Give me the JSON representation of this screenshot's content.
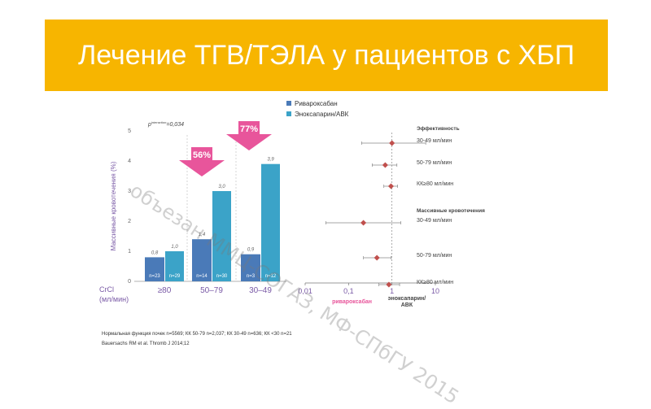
{
  "slide": {
    "title": "Лечение ТГВ/ТЭЛА у пациентов с ХБП",
    "footnote": "Нормальная функция почек n=5569; КК 50-79 n=2,037; КК 30-49 n=636;  КК <30  n=21",
    "reference": "Bauersachs RM et al. Thromb J 2014;12",
    "watermark": "объезан ММЦ-СОГАЗ, МФ-СПбГУ 2015"
  },
  "colors": {
    "title_bg": "#f7b500",
    "rivaroxaban": "#4a7ab8",
    "enoxaparin": "#3ba3c8",
    "arrow": "#e8559b",
    "forest_marker": "#c0504d"
  },
  "chart_data": [
    {
      "type": "bar",
      "ylabel": "Массивные кровотечения (%)",
      "xlabel": "CrCl (мл/мин)",
      "ylim": [
        0,
        5
      ],
      "yticks": [
        "0",
        "1",
        "2",
        "3",
        "4",
        "5"
      ],
      "p_text": "p",
      "p_super": "interaction",
      "p_value": "=0,034",
      "categories": [
        "≥80",
        "50–79",
        "30–49"
      ],
      "series": [
        {
          "name": "Ривароксабан",
          "values": [
            0.8,
            1.4,
            0.9
          ],
          "labels": [
            "0,8",
            "1,4",
            "0,9"
          ],
          "n": [
            "n=23",
            "n=14",
            "n=3"
          ]
        },
        {
          "name": "Эноксапарин/АВК",
          "values": [
            1.0,
            3.0,
            3.9
          ],
          "labels": [
            "1,0",
            "3,0",
            "3,9"
          ],
          "n": [
            "n=29",
            "n=30",
            "n=12"
          ]
        }
      ],
      "annotations": [
        {
          "label": "56%",
          "category": "50–79"
        },
        {
          "label": "77%",
          "category": "30–49"
        }
      ]
    },
    {
      "type": "scatter",
      "xscale": "log",
      "xticks": [
        "0,01",
        "0,1",
        "1",
        "10"
      ],
      "xlim": [
        0.01,
        10
      ],
      "groups": [
        {
          "heading": "Эффективность",
          "rows": [
            {
              "label": "30-49 мл/мин",
              "estimate": 1.0,
              "low": 0.2,
              "high": 6.0
            },
            {
              "label": "50-79 мл/мин",
              "estimate": 0.7,
              "low": 0.35,
              "high": 1.3
            },
            {
              "label": "КК≥80 мл/мин",
              "estimate": 0.95,
              "low": 0.65,
              "high": 1.35
            }
          ]
        },
        {
          "heading": "Массивные кровотечения",
          "rows": [
            {
              "label": "30-49 мл/мин",
              "estimate": 0.22,
              "low": 0.03,
              "high": 1.6
            },
            {
              "label": "50-79 мл/мин",
              "estimate": 0.45,
              "low": 0.22,
              "high": 0.95
            },
            {
              "label": "КК≥80 мл/мин",
              "estimate": 0.85,
              "low": 0.5,
              "high": 1.5
            }
          ]
        }
      ],
      "favours_left": "ривароксабан",
      "favours_right": "эноксапарин/ АВК"
    }
  ]
}
